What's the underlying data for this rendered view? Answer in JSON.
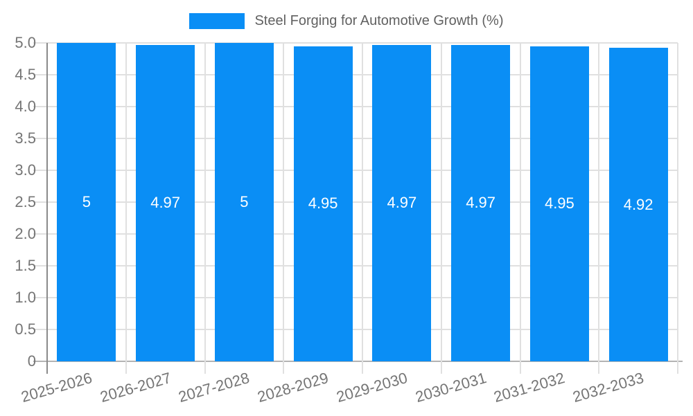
{
  "legend": {
    "label": "Steel Forging for Automotive Growth (%)"
  },
  "chart_data": {
    "type": "bar",
    "title": "Steel Forging for Automotive Growth (%)",
    "categories": [
      "2025-2026",
      "2026-2027",
      "2027-2028",
      "2028-2029",
      "2029-2030",
      "2030-2031",
      "2031-2032",
      "2032-2033"
    ],
    "values": [
      5,
      4.97,
      5,
      4.95,
      4.97,
      4.97,
      4.95,
      4.92
    ],
    "bar_labels": [
      "5",
      "4.97",
      "5",
      "4.95",
      "4.97",
      "4.97",
      "4.95",
      "4.92"
    ],
    "xlabel": "",
    "ylabel": "",
    "ylim": [
      0,
      5
    ],
    "ytick_step": 0.5,
    "ytick_labels": [
      "0",
      "0.5",
      "1.0",
      "1.5",
      "2.0",
      "2.5",
      "3.0",
      "3.5",
      "4.0",
      "4.5",
      "5.0"
    ],
    "legend_position": "top-center",
    "grid": "on",
    "colors": {
      "bar": "#0a8ef5",
      "grid_line": "#e0e0e0",
      "axis_line": "#b3b3b3",
      "y_axis_line": "#8a8a8a",
      "tick_text": "#757575",
      "legend_text": "#616161",
      "bar_value_text": "#ffffff",
      "background": "#ffffff"
    }
  }
}
